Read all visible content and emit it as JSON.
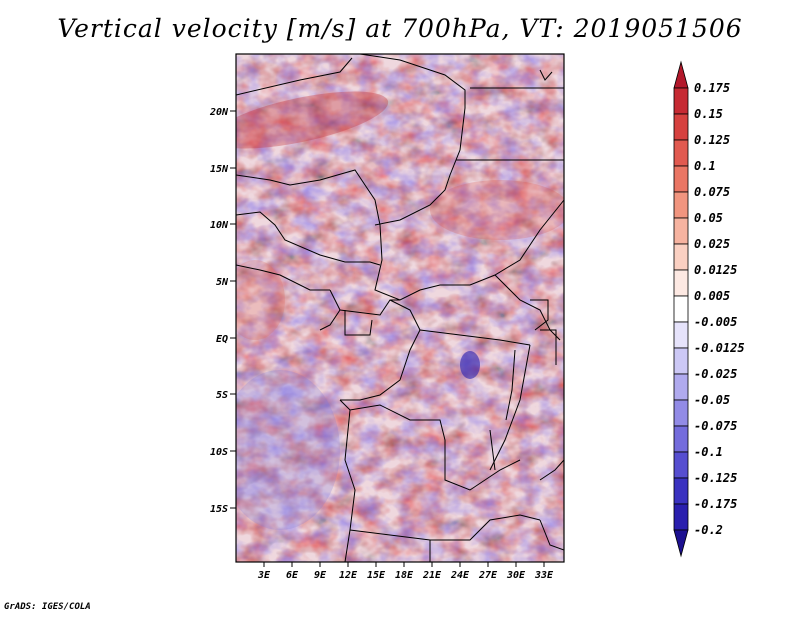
{
  "title": "Vertical velocity [m/s] at 700hPa, VT: 2019051506",
  "credit": "GrADS: IGES/COLA",
  "map": {
    "lat_labels": [
      "20N",
      "15N",
      "10N",
      "5N",
      "EQ",
      "5S",
      "10S",
      "15S"
    ],
    "lon_labels": [
      "3E",
      "6E",
      "9E",
      "12E",
      "15E",
      "18E",
      "21E",
      "24E",
      "27E",
      "30E",
      "33E"
    ]
  },
  "colorbar": {
    "labels": [
      "0.175",
      "0.15",
      "0.125",
      "0.1",
      "0.075",
      "0.05",
      "0.025",
      "0.0125",
      "0.005",
      "-0.005",
      "-0.0125",
      "-0.025",
      "-0.05",
      "-0.075",
      "-0.1",
      "-0.125",
      "-0.175",
      "-0.2"
    ],
    "colors": [
      "#b2182b",
      "#c62a33",
      "#d6413f",
      "#e15a50",
      "#ea7664",
      "#f1957f",
      "#f6b3a0",
      "#fad0c2",
      "#fde9e3",
      "#ffffff",
      "#e6e3fb",
      "#ccc8f5",
      "#b0aaee",
      "#928be6",
      "#746cdc",
      "#564ed0",
      "#3a32c0",
      "#2a1fae"
    ]
  }
}
